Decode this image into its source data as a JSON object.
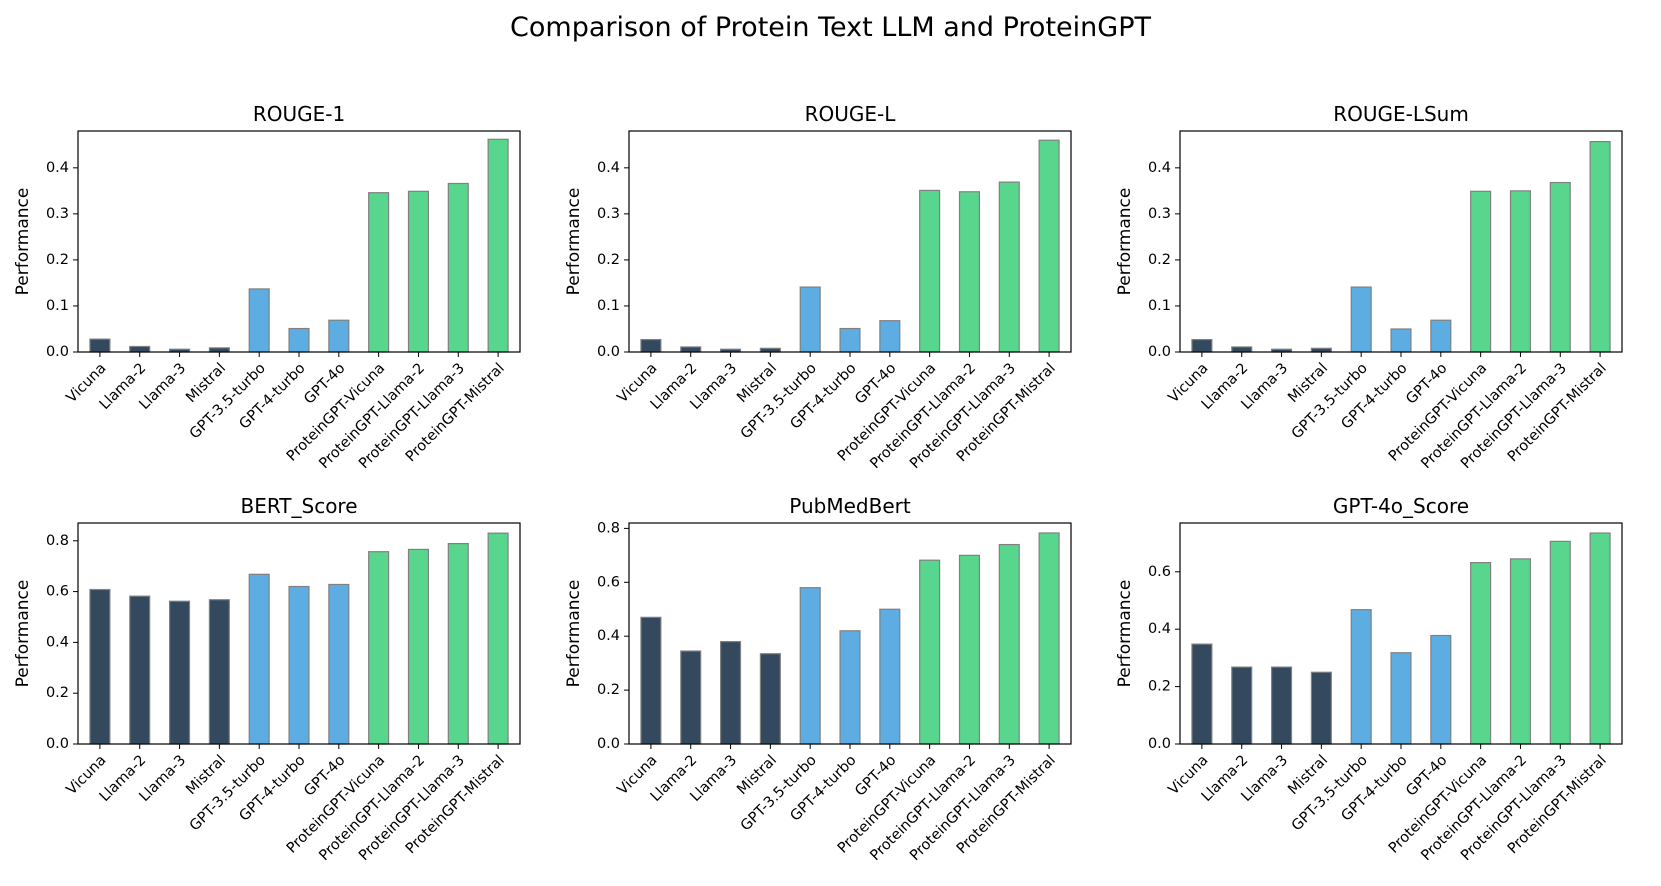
{
  "title": "Comparison of Protein Text LLM and ProteinGPT",
  "colors": {
    "baseline": "#34495e",
    "gpt": "#5dade2",
    "proteingpt": "#58d68d",
    "bar_edge": "#808080"
  },
  "chart_data": [
    {
      "type": "bar",
      "title": "ROUGE-1",
      "ylabel": "Performance",
      "ylim": [
        0,
        0.48
      ],
      "yticks": [
        "0.0",
        "0.1",
        "0.2",
        "0.3",
        "0.4"
      ],
      "categories": [
        "Vicuna",
        "Llama-2",
        "Llama-3",
        "Mistral",
        "GPT-3.5-turbo",
        "GPT-4-turbo",
        "GPT-4o",
        "ProteinGPT-Vicuna",
        "ProteinGPT-Llama-2",
        "ProteinGPT-Llama-3",
        "ProteinGPT-Mistral"
      ],
      "groups": [
        "baseline",
        "baseline",
        "baseline",
        "baseline",
        "gpt",
        "gpt",
        "gpt",
        "proteingpt",
        "proteingpt",
        "proteingpt",
        "proteingpt"
      ],
      "values": [
        0.028,
        0.012,
        0.006,
        0.009,
        0.137,
        0.051,
        0.069,
        0.346,
        0.349,
        0.366,
        0.462
      ]
    },
    {
      "type": "bar",
      "title": "ROUGE-L",
      "ylabel": "Performance",
      "ylim": [
        0,
        0.48
      ],
      "yticks": [
        "0.0",
        "0.1",
        "0.2",
        "0.3",
        "0.4"
      ],
      "categories": [
        "Vicuna",
        "Llama-2",
        "Llama-3",
        "Mistral",
        "GPT-3.5-turbo",
        "GPT-4-turbo",
        "GPT-4o",
        "ProteinGPT-Vicuna",
        "ProteinGPT-Llama-2",
        "ProteinGPT-Llama-3",
        "ProteinGPT-Mistral"
      ],
      "groups": [
        "baseline",
        "baseline",
        "baseline",
        "baseline",
        "gpt",
        "gpt",
        "gpt",
        "proteingpt",
        "proteingpt",
        "proteingpt",
        "proteingpt"
      ],
      "values": [
        0.027,
        0.011,
        0.006,
        0.008,
        0.141,
        0.051,
        0.068,
        0.351,
        0.348,
        0.369,
        0.46
      ]
    },
    {
      "type": "bar",
      "title": "ROUGE-LSum",
      "ylabel": "Performance",
      "ylim": [
        0,
        0.48
      ],
      "yticks": [
        "0.0",
        "0.1",
        "0.2",
        "0.3",
        "0.4"
      ],
      "categories": [
        "Vicuna",
        "Llama-2",
        "Llama-3",
        "Mistral",
        "GPT-3.5-turbo",
        "GPT-4-turbo",
        "GPT-4o",
        "ProteinGPT-Vicuna",
        "ProteinGPT-Llama-2",
        "ProteinGPT-Llama-3",
        "ProteinGPT-Mistral"
      ],
      "groups": [
        "baseline",
        "baseline",
        "baseline",
        "baseline",
        "gpt",
        "gpt",
        "gpt",
        "proteingpt",
        "proteingpt",
        "proteingpt",
        "proteingpt"
      ],
      "values": [
        0.027,
        0.011,
        0.006,
        0.008,
        0.141,
        0.05,
        0.069,
        0.349,
        0.35,
        0.368,
        0.457
      ]
    },
    {
      "type": "bar",
      "title": "BERT_Score",
      "ylabel": "Performance",
      "ylim": [
        0,
        0.87
      ],
      "yticks": [
        "0.0",
        "0.2",
        "0.4",
        "0.6",
        "0.8"
      ],
      "categories": [
        "Vicuna",
        "Llama-2",
        "Llama-3",
        "Mistral",
        "GPT-3.5-turbo",
        "GPT-4-turbo",
        "GPT-4o",
        "ProteinGPT-Vicuna",
        "ProteinGPT-Llama-2",
        "ProteinGPT-Llama-3",
        "ProteinGPT-Mistral"
      ],
      "groups": [
        "baseline",
        "baseline",
        "baseline",
        "baseline",
        "gpt",
        "gpt",
        "gpt",
        "proteingpt",
        "proteingpt",
        "proteingpt",
        "proteingpt"
      ],
      "values": [
        0.608,
        0.582,
        0.562,
        0.568,
        0.668,
        0.62,
        0.628,
        0.757,
        0.766,
        0.789,
        0.83
      ]
    },
    {
      "type": "bar",
      "title": "PubMedBert",
      "ylabel": "Performance",
      "ylim": [
        0,
        0.82
      ],
      "yticks": [
        "0.0",
        "0.2",
        "0.4",
        "0.6",
        "0.8"
      ],
      "categories": [
        "Vicuna",
        "Llama-2",
        "Llama-3",
        "Mistral",
        "GPT-3.5-turbo",
        "GPT-4-turbo",
        "GPT-4o",
        "ProteinGPT-Vicuna",
        "ProteinGPT-Llama-2",
        "ProteinGPT-Llama-3",
        "ProteinGPT-Mistral"
      ],
      "groups": [
        "baseline",
        "baseline",
        "baseline",
        "baseline",
        "gpt",
        "gpt",
        "gpt",
        "proteingpt",
        "proteingpt",
        "proteingpt",
        "proteingpt"
      ],
      "values": [
        0.47,
        0.345,
        0.38,
        0.335,
        0.58,
        0.42,
        0.5,
        0.682,
        0.7,
        0.74,
        0.783
      ]
    },
    {
      "type": "bar",
      "title": "GPT-4o_Score",
      "ylabel": "Performance",
      "ylim": [
        0,
        0.77
      ],
      "yticks": [
        "0.0",
        "0.2",
        "0.4",
        "0.6"
      ],
      "categories": [
        "Vicuna",
        "Llama-2",
        "Llama-3",
        "Mistral",
        "GPT-3.5-turbo",
        "GPT-4-turbo",
        "GPT-4o",
        "ProteinGPT-Vicuna",
        "ProteinGPT-Llama-2",
        "ProteinGPT-Llama-3",
        "ProteinGPT-Mistral"
      ],
      "groups": [
        "baseline",
        "baseline",
        "baseline",
        "baseline",
        "gpt",
        "gpt",
        "gpt",
        "proteingpt",
        "proteingpt",
        "proteingpt",
        "proteingpt"
      ],
      "values": [
        0.348,
        0.268,
        0.268,
        0.25,
        0.468,
        0.318,
        0.378,
        0.632,
        0.645,
        0.706,
        0.735
      ]
    }
  ]
}
